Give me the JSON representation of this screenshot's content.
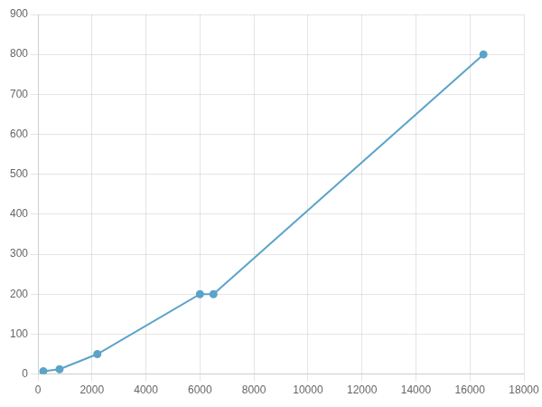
{
  "chart_data": {
    "type": "line",
    "x": [
      200,
      800,
      2200,
      6000,
      6500,
      16500
    ],
    "values": [
      7,
      12,
      50,
      200,
      200,
      800
    ],
    "color": "#5ba3c9",
    "marker": "circle",
    "xlim": [
      0,
      18000
    ],
    "ylim": [
      0,
      900
    ],
    "xticks": [
      0,
      2000,
      4000,
      6000,
      8000,
      10000,
      12000,
      14000,
      16000,
      18000
    ],
    "yticks": [
      0,
      100,
      200,
      300,
      400,
      500,
      600,
      700,
      800,
      900
    ],
    "grid": true
  }
}
